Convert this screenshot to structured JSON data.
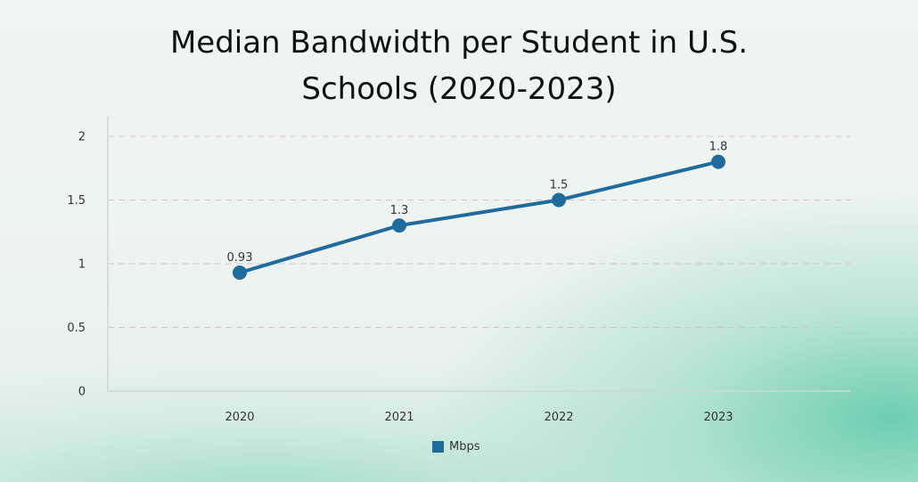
{
  "chart_data": {
    "type": "line",
    "title": "Median Bandwidth per Student in U.S. Schools (2020-2023)",
    "xlabel": "",
    "ylabel": "",
    "categories": [
      "2020",
      "2021",
      "2022",
      "2023"
    ],
    "series": [
      {
        "name": "Mbps",
        "values": [
          0.93,
          1.3,
          1.5,
          1.8
        ],
        "data_labels": [
          "0.93",
          "1.3",
          "1.5",
          "1.8"
        ],
        "color": "#1f6b9c"
      }
    ],
    "ylim": [
      0,
      2
    ],
    "yticks": [
      0,
      0.5,
      1,
      1.5,
      2
    ],
    "ytick_labels": [
      "0",
      "0.5",
      "1",
      "1.5",
      "2"
    ],
    "grid": true,
    "legend_position": "bottom-center"
  }
}
